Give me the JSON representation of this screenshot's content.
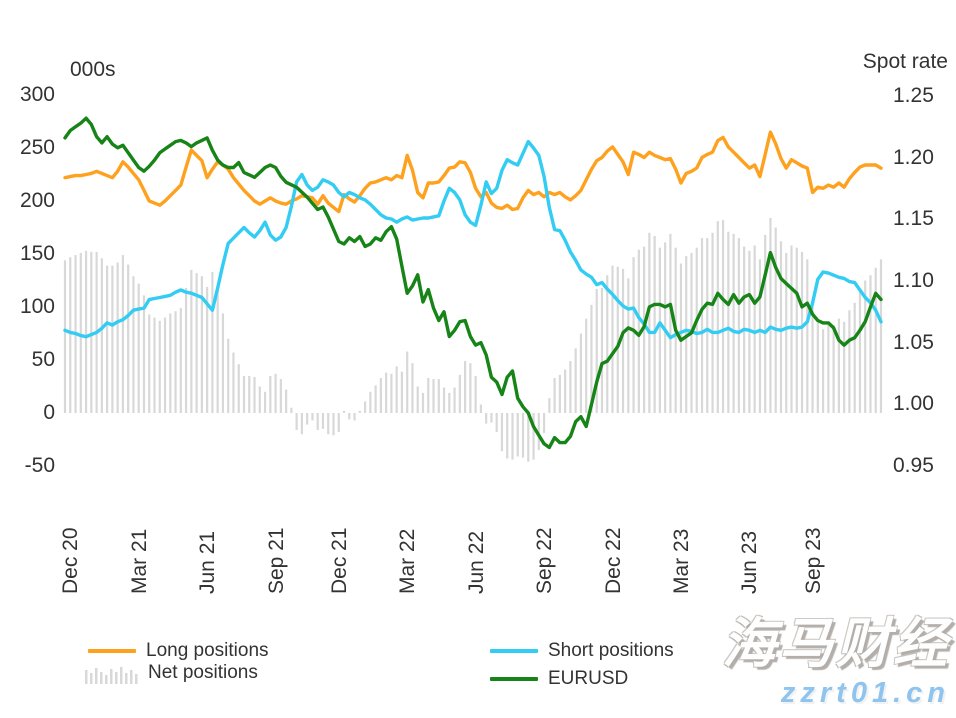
{
  "watermark": {
    "title": "海马财经",
    "url": "zzrt01.cn"
  },
  "chart_data": {
    "type": "combo",
    "title": "",
    "x_labels": [
      "Dec 20",
      "Mar 21",
      "Jun 21",
      "Sep 21",
      "Dec 21",
      "Mar 22",
      "Jun 22",
      "Sep 22",
      "Dec 22",
      "Mar 23",
      "Jun 23",
      "Sep 23"
    ],
    "x_label_weeks": [
      1,
      14,
      27,
      40,
      52,
      65,
      78,
      91,
      104,
      117,
      130,
      142
    ],
    "x_unit": "weekly observations, Dec 2020 – Nov 2023",
    "grid": false,
    "legend_position": "bottom",
    "left_axis": {
      "title": "000s",
      "min": -50,
      "max": 300,
      "ticks": [
        300,
        250,
        200,
        150,
        100,
        50,
        0,
        -50
      ]
    },
    "right_axis": {
      "title": "Spot rate",
      "min": 0.95,
      "max": 1.25,
      "ticks": [
        "1.25",
        "1.20",
        "1.15",
        "1.10",
        "1.05",
        "1.00",
        "0.95"
      ]
    },
    "series": [
      {
        "name": "Long positions",
        "type": "line",
        "axis": "left",
        "color": "#FEA11E",
        "values": [
          222,
          223,
          224,
          224,
          225,
          226,
          228,
          226,
          224,
          222,
          228,
          237,
          232,
          226,
          220,
          210,
          200,
          198,
          196,
          200,
          205,
          210,
          215,
          232,
          248,
          243,
          238,
          222,
          230,
          237,
          234,
          230,
          222,
          216,
          210,
          205,
          200,
          197,
          200,
          203,
          200,
          198,
          197,
          200,
          202,
          205,
          204,
          203,
          197,
          205,
          198,
          194,
          190,
          206,
          202,
          199,
          205,
          212,
          217,
          218,
          220,
          222,
          220,
          224,
          222,
          243,
          229,
          208,
          203,
          217,
          217,
          218,
          224,
          231,
          232,
          237,
          236,
          227,
          212,
          204,
          208,
          198,
          194,
          193,
          196,
          192,
          193,
          203,
          210,
          206,
          208,
          204,
          208,
          206,
          208,
          204,
          201,
          205,
          210,
          220,
          230,
          238,
          241,
          247,
          251,
          244,
          237,
          225,
          246,
          244,
          241,
          246,
          243,
          241,
          239,
          240,
          230,
          217,
          226,
          228,
          231,
          241,
          244,
          246,
          257,
          260,
          251,
          246,
          241,
          236,
          231,
          234,
          223,
          244,
          265,
          254,
          240,
          231,
          239,
          236,
          233,
          231,
          208,
          213,
          212,
          215,
          213,
          217,
          213,
          221,
          227,
          232,
          234,
          234,
          234,
          231
        ]
      },
      {
        "name": "Net positions",
        "type": "bar",
        "axis": "left",
        "color": "#D8D8D8",
        "values": [
          144,
          147,
          149,
          151,
          153,
          152,
          152,
          146,
          139,
          139,
          142,
          149,
          140,
          129,
          122,
          111,
          93,
          90,
          87,
          90,
          94,
          96,
          99,
          118,
          135,
          132,
          129,
          119,
          133,
          119,
          94,
          70,
          57,
          46,
          35,
          35,
          34,
          25,
          20,
          35,
          37,
          32,
          22,
          5,
          -16,
          -20,
          -11,
          -7,
          -16,
          -15,
          -20,
          -21,
          -18,
          2,
          -6,
          -7,
          2,
          11,
          20,
          26,
          33,
          38,
          37,
          44,
          39,
          58,
          47,
          25,
          19,
          33,
          32,
          32,
          24,
          19,
          24,
          36,
          49,
          47,
          35,
          8,
          -10,
          -9,
          -18,
          -36,
          -43,
          -44,
          -41,
          -42,
          -46,
          -44,
          -35,
          -19,
          14,
          33,
          36,
          41,
          49,
          61,
          75,
          89,
          102,
          117,
          118,
          130,
          139,
          138,
          136,
          127,
          147,
          154,
          157,
          170,
          167,
          156,
          161,
          169,
          156,
          141,
          148,
          151,
          156,
          165,
          165,
          170,
          181,
          182,
          171,
          169,
          165,
          157,
          153,
          158,
          145,
          168,
          184,
          175,
          162,
          151,
          158,
          156,
          152,
          145,
          104,
          87,
          79,
          83,
          83,
          89,
          86,
          97,
          104,
          116,
          125,
          130,
          137,
          145
        ]
      },
      {
        "name": "Short positions",
        "type": "line",
        "axis": "left",
        "color": "#33CCF3",
        "values": [
          78,
          76,
          75,
          73,
          72,
          74,
          76,
          80,
          85,
          83,
          86,
          88,
          92,
          97,
          98,
          99,
          107,
          108,
          109,
          110,
          111,
          114,
          116,
          114,
          113,
          111,
          109,
          103,
          97,
          118,
          140,
          160,
          165,
          170,
          175,
          170,
          166,
          172,
          180,
          168,
          163,
          166,
          175,
          195,
          218,
          225,
          215,
          210,
          213,
          220,
          218,
          215,
          208,
          204,
          208,
          206,
          203,
          201,
          197,
          192,
          187,
          184,
          183,
          180,
          183,
          185,
          182,
          183,
          184,
          184,
          185,
          186,
          200,
          212,
          208,
          201,
          187,
          180,
          177,
          196,
          218,
          207,
          212,
          229,
          239,
          236,
          234,
          245,
          256,
          250,
          243,
          223,
          194,
          173,
          172,
          163,
          152,
          144,
          135,
          131,
          128,
          121,
          123,
          117,
          112,
          106,
          101,
          98,
          99,
          90,
          84,
          76,
          76,
          85,
          78,
          71,
          74,
          76,
          78,
          77,
          75,
          76,
          79,
          76,
          76,
          78,
          80,
          77,
          76,
          79,
          78,
          76,
          78,
          76,
          81,
          79,
          78,
          80,
          81,
          80,
          81,
          86,
          104,
          126,
          133,
          132,
          130,
          128,
          127,
          124,
          123,
          116,
          109,
          104,
          97,
          86
        ]
      },
      {
        "name": "EURUSD",
        "type": "line",
        "axis": "right",
        "color": "#178417",
        "values": [
          1.216,
          1.222,
          1.225,
          1.228,
          1.232,
          1.227,
          1.217,
          1.212,
          1.217,
          1.211,
          1.208,
          1.21,
          1.204,
          1.198,
          1.192,
          1.189,
          1.193,
          1.198,
          1.204,
          1.207,
          1.21,
          1.213,
          1.214,
          1.212,
          1.209,
          1.212,
          1.214,
          1.216,
          1.206,
          1.198,
          1.194,
          1.192,
          1.192,
          1.196,
          1.188,
          1.186,
          1.184,
          1.188,
          1.192,
          1.194,
          1.192,
          1.185,
          1.18,
          1.178,
          1.176,
          1.172,
          1.168,
          1.163,
          1.158,
          1.16,
          1.152,
          1.142,
          1.132,
          1.13,
          1.135,
          1.132,
          1.136,
          1.128,
          1.13,
          1.135,
          1.133,
          1.14,
          1.144,
          1.134,
          1.112,
          1.09,
          1.096,
          1.105,
          1.083,
          1.093,
          1.078,
          1.068,
          1.075,
          1.055,
          1.06,
          1.067,
          1.068,
          1.055,
          1.048,
          1.05,
          1.04,
          1.022,
          1.018,
          1.008,
          1.022,
          1.027,
          1.005,
          0.998,
          0.993,
          0.982,
          0.975,
          0.968,
          0.965,
          0.973,
          0.969,
          0.969,
          0.974,
          0.986,
          0.99,
          0.982,
          1.0,
          1.018,
          1.033,
          1.035,
          1.041,
          1.047,
          1.058,
          1.062,
          1.06,
          1.056,
          1.063,
          1.079,
          1.081,
          1.081,
          1.079,
          1.081,
          1.06,
          1.052,
          1.055,
          1.058,
          1.068,
          1.077,
          1.082,
          1.081,
          1.09,
          1.085,
          1.081,
          1.089,
          1.082,
          1.087,
          1.089,
          1.082,
          1.087,
          1.105,
          1.123,
          1.111,
          1.102,
          1.098,
          1.094,
          1.09,
          1.079,
          1.082,
          1.073,
          1.068,
          1.066,
          1.066,
          1.062,
          1.052,
          1.048,
          1.052,
          1.054,
          1.06,
          1.067,
          1.079,
          1.09,
          1.085
        ]
      }
    ]
  }
}
